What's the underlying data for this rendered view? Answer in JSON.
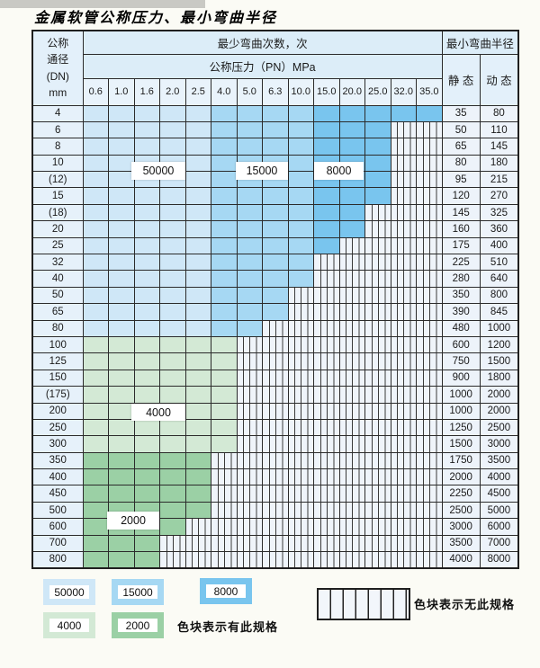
{
  "title": "金属软管公称压力、最小弯曲半径",
  "colors": {
    "cycles_50000_blue": "#cfe7f7",
    "cycles_15000_blue": "#a6d8f3",
    "cycles_8000_blue": "#79c5ee",
    "cycles_4000_green": "#d3e9d5",
    "cycles_2000_green": "#9bd0a5",
    "hatch_bg": "#eff4fa",
    "header_bg": "#dcedf8"
  },
  "table": {
    "header": {
      "dn_lines": [
        "公称",
        "通径",
        "(DN)",
        "mm"
      ],
      "bend_cycles_label": "最少弯曲次数，次",
      "pressure_label": "公称压力（PN）MPa",
      "min_radius_label": "最小弯曲半径",
      "static_label": "静 态",
      "dynamic_label": "动 态",
      "pressures": [
        "0.6",
        "1.0",
        "1.6",
        "2.0",
        "2.5",
        "4.0",
        "5.0",
        "6.3",
        "10.0",
        "15.0",
        "20.0",
        "25.0",
        "32.0",
        "35.0"
      ]
    },
    "cycle_labels": {
      "c50000": "50000",
      "c15000": "15000",
      "c8000": "8000",
      "c4000": "4000",
      "c2000": "2000"
    },
    "rows": [
      {
        "dn": "4",
        "cells": [
          "lb",
          "lb",
          "lb",
          "lb",
          "lb",
          "mb",
          "mb",
          "mb",
          "mb",
          "db",
          "db",
          "db",
          "db",
          "db"
        ],
        "static": "35",
        "dynamic": "80"
      },
      {
        "dn": "6",
        "cells": [
          "lb",
          "lb",
          "lb",
          "lb",
          "lb",
          "mb",
          "mb",
          "mb",
          "mb",
          "db",
          "db",
          "db",
          "x",
          "x"
        ],
        "static": "50",
        "dynamic": "110"
      },
      {
        "dn": "8",
        "cells": [
          "lb",
          "lb",
          "lb",
          "lb",
          "lb",
          "mb",
          "mb",
          "mb",
          "mb",
          "db",
          "db",
          "db",
          "x",
          "x"
        ],
        "static": "65",
        "dynamic": "145"
      },
      {
        "dn": "10",
        "cells": [
          "lb",
          "lb",
          "lb",
          "lb",
          "lb",
          "mb",
          "mb",
          "mb",
          "mb",
          "db",
          "db",
          "db",
          "x",
          "x"
        ],
        "static": "80",
        "dynamic": "180"
      },
      {
        "dn": "(12)",
        "cells": [
          "lb",
          "lb",
          "lb",
          "lb",
          "lb",
          "mb",
          "mb",
          "mb",
          "mb",
          "db",
          "db",
          "db",
          "x",
          "x"
        ],
        "static": "95",
        "dynamic": "215"
      },
      {
        "dn": "15",
        "cells": [
          "lb",
          "lb",
          "lb",
          "lb",
          "lb",
          "mb",
          "mb",
          "mb",
          "mb",
          "db",
          "db",
          "db",
          "x",
          "x"
        ],
        "static": "120",
        "dynamic": "270"
      },
      {
        "dn": "(18)",
        "cells": [
          "lb",
          "lb",
          "lb",
          "lb",
          "lb",
          "mb",
          "mb",
          "mb",
          "mb",
          "db",
          "db",
          "x",
          "x",
          "x"
        ],
        "static": "145",
        "dynamic": "325"
      },
      {
        "dn": "20",
        "cells": [
          "lb",
          "lb",
          "lb",
          "lb",
          "lb",
          "mb",
          "mb",
          "mb",
          "mb",
          "db",
          "db",
          "x",
          "x",
          "x"
        ],
        "static": "160",
        "dynamic": "360"
      },
      {
        "dn": "25",
        "cells": [
          "lb",
          "lb",
          "lb",
          "lb",
          "lb",
          "mb",
          "mb",
          "mb",
          "mb",
          "db",
          "x",
          "x",
          "x",
          "x"
        ],
        "static": "175",
        "dynamic": "400"
      },
      {
        "dn": "32",
        "cells": [
          "lb",
          "lb",
          "lb",
          "lb",
          "lb",
          "mb",
          "mb",
          "mb",
          "mb",
          "x",
          "x",
          "x",
          "x",
          "x"
        ],
        "static": "225",
        "dynamic": "510"
      },
      {
        "dn": "40",
        "cells": [
          "lb",
          "lb",
          "lb",
          "lb",
          "lb",
          "mb",
          "mb",
          "mb",
          "mb",
          "x",
          "x",
          "x",
          "x",
          "x"
        ],
        "static": "280",
        "dynamic": "640"
      },
      {
        "dn": "50",
        "cells": [
          "lb",
          "lb",
          "lb",
          "lb",
          "lb",
          "mb",
          "mb",
          "mb",
          "x",
          "x",
          "x",
          "x",
          "x",
          "x"
        ],
        "static": "350",
        "dynamic": "800"
      },
      {
        "dn": "65",
        "cells": [
          "lb",
          "lb",
          "lb",
          "lb",
          "lb",
          "mb",
          "mb",
          "mb",
          "x",
          "x",
          "x",
          "x",
          "x",
          "x"
        ],
        "static": "390",
        "dynamic": "845"
      },
      {
        "dn": "80",
        "cells": [
          "lb",
          "lb",
          "lb",
          "lb",
          "lb",
          "mb",
          "mb",
          "x",
          "x",
          "x",
          "x",
          "x",
          "x",
          "x"
        ],
        "static": "480",
        "dynamic": "1000"
      },
      {
        "dn": "100",
        "cells": [
          "lg",
          "lg",
          "lg",
          "lg",
          "lg",
          "lg",
          "x",
          "x",
          "x",
          "x",
          "x",
          "x",
          "x",
          "x"
        ],
        "static": "600",
        "dynamic": "1200"
      },
      {
        "dn": "125",
        "cells": [
          "lg",
          "lg",
          "lg",
          "lg",
          "lg",
          "lg",
          "x",
          "x",
          "x",
          "x",
          "x",
          "x",
          "x",
          "x"
        ],
        "static": "750",
        "dynamic": "1500"
      },
      {
        "dn": "150",
        "cells": [
          "lg",
          "lg",
          "lg",
          "lg",
          "lg",
          "lg",
          "x",
          "x",
          "x",
          "x",
          "x",
          "x",
          "x",
          "x"
        ],
        "static": "900",
        "dynamic": "1800"
      },
      {
        "dn": "(175)",
        "cells": [
          "lg",
          "lg",
          "lg",
          "lg",
          "lg",
          "lg",
          "x",
          "x",
          "x",
          "x",
          "x",
          "x",
          "x",
          "x"
        ],
        "static": "1000",
        "dynamic": "2000"
      },
      {
        "dn": "200",
        "cells": [
          "lg",
          "lg",
          "lg",
          "lg",
          "lg",
          "lg",
          "x",
          "x",
          "x",
          "x",
          "x",
          "x",
          "x",
          "x"
        ],
        "static": "1000",
        "dynamic": "2000"
      },
      {
        "dn": "250",
        "cells": [
          "lg",
          "lg",
          "lg",
          "lg",
          "lg",
          "lg",
          "x",
          "x",
          "x",
          "x",
          "x",
          "x",
          "x",
          "x"
        ],
        "static": "1250",
        "dynamic": "2500"
      },
      {
        "dn": "300",
        "cells": [
          "lg",
          "lg",
          "lg",
          "lg",
          "lg",
          "lg",
          "x",
          "x",
          "x",
          "x",
          "x",
          "x",
          "x",
          "x"
        ],
        "static": "1500",
        "dynamic": "3000"
      },
      {
        "dn": "350",
        "cells": [
          "dg",
          "dg",
          "dg",
          "dg",
          "dg",
          "x",
          "x",
          "x",
          "x",
          "x",
          "x",
          "x",
          "x",
          "x"
        ],
        "static": "1750",
        "dynamic": "3500"
      },
      {
        "dn": "400",
        "cells": [
          "dg",
          "dg",
          "dg",
          "dg",
          "dg",
          "x",
          "x",
          "x",
          "x",
          "x",
          "x",
          "x",
          "x",
          "x"
        ],
        "static": "2000",
        "dynamic": "4000"
      },
      {
        "dn": "450",
        "cells": [
          "dg",
          "dg",
          "dg",
          "dg",
          "dg",
          "x",
          "x",
          "x",
          "x",
          "x",
          "x",
          "x",
          "x",
          "x"
        ],
        "static": "2250",
        "dynamic": "4500"
      },
      {
        "dn": "500",
        "cells": [
          "dg",
          "dg",
          "dg",
          "dg",
          "dg",
          "x",
          "x",
          "x",
          "x",
          "x",
          "x",
          "x",
          "x",
          "x"
        ],
        "static": "2500",
        "dynamic": "5000"
      },
      {
        "dn": "600",
        "cells": [
          "dg",
          "dg",
          "dg",
          "dg",
          "x",
          "x",
          "x",
          "x",
          "x",
          "x",
          "x",
          "x",
          "x",
          "x"
        ],
        "static": "3000",
        "dynamic": "6000"
      },
      {
        "dn": "700",
        "cells": [
          "dg",
          "dg",
          "dg",
          "x",
          "x",
          "x",
          "x",
          "x",
          "x",
          "x",
          "x",
          "x",
          "x",
          "x"
        ],
        "static": "3500",
        "dynamic": "7000"
      },
      {
        "dn": "800",
        "cells": [
          "dg",
          "dg",
          "dg",
          "x",
          "x",
          "x",
          "x",
          "x",
          "x",
          "x",
          "x",
          "x",
          "x",
          "x"
        ],
        "static": "4000",
        "dynamic": "8000"
      }
    ]
  },
  "legend": {
    "items": [
      {
        "label": "50000",
        "color_key": "cycles_50000_blue"
      },
      {
        "label": "15000",
        "color_key": "cycles_15000_blue"
      },
      {
        "label": "8000",
        "color_key": "cycles_8000_blue"
      },
      {
        "label": "4000",
        "color_key": "cycles_4000_green"
      },
      {
        "label": "2000",
        "color_key": "cycles_2000_green"
      }
    ],
    "available_note": "色块表示有此规格",
    "unavailable_note": "色块表示无此规格"
  }
}
